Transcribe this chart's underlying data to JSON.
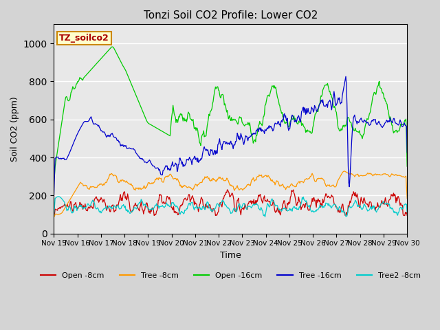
{
  "title": "Tonzi Soil CO2 Profile: Lower CO2",
  "ylabel": "Soil CO2 (ppm)",
  "xlabel": "Time",
  "watermark": "TZ_soilco2",
  "ylim": [
    0,
    1100
  ],
  "plot_bg_color": "#e8e8e8",
  "fig_bg_color": "#d4d4d4",
  "series": {
    "open_8cm": {
      "color": "#cc0000",
      "label": "Open -8cm"
    },
    "tree_8cm": {
      "color": "#ff9900",
      "label": "Tree -8cm"
    },
    "open_16cm": {
      "color": "#00cc00",
      "label": "Open -16cm"
    },
    "tree_16cm": {
      "color": "#0000cc",
      "label": "Tree -16cm"
    },
    "tree2_8cm": {
      "color": "#00cccc",
      "label": "Tree2 -8cm"
    }
  },
  "x_tick_labels": [
    "Nov 15",
    "Nov 16",
    "Nov 17",
    "Nov 18",
    "Nov 19",
    "Nov 20",
    "Nov 21",
    "Nov 22",
    "Nov 23",
    "Nov 24",
    "Nov 25",
    "Nov 26",
    "Nov 27",
    "Nov 28",
    "Nov 29",
    "Nov 30"
  ],
  "n_points": 600
}
